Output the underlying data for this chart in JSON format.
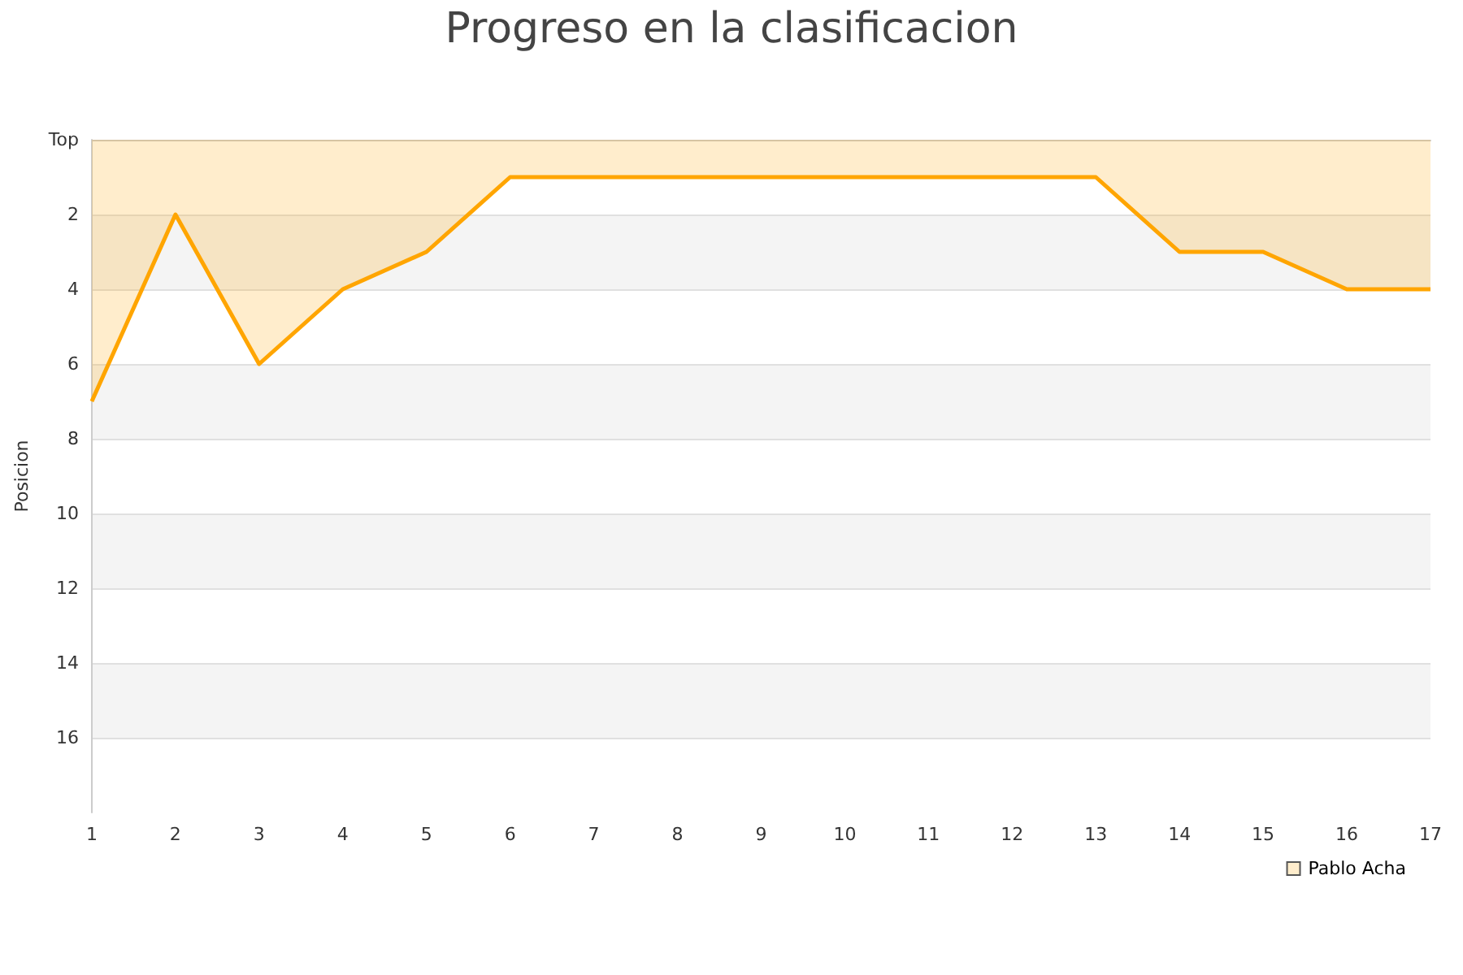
{
  "chart_data": {
    "type": "area",
    "title": "Progreso en la clasificacion",
    "ylabel": "Posicion",
    "x": [
      1,
      2,
      3,
      4,
      5,
      6,
      7,
      8,
      9,
      10,
      11,
      12,
      13,
      14,
      15,
      16,
      17
    ],
    "series": [
      {
        "name": "Pablo Acha",
        "color": "#ffa500",
        "values": [
          7,
          2,
          6,
          4,
          3,
          1,
          1,
          1,
          1,
          1,
          1,
          1,
          1,
          3,
          3,
          4,
          4
        ]
      }
    ],
    "xlim": [
      1,
      17
    ],
    "xticks": [
      1,
      2,
      3,
      4,
      5,
      6,
      7,
      8,
      9,
      10,
      11,
      12,
      13,
      14,
      15,
      16,
      17
    ],
    "ylim": [
      18,
      0
    ],
    "yticks": [
      {
        "value": 0,
        "label": "Top"
      },
      2,
      4,
      6,
      8,
      10,
      12,
      14,
      16
    ],
    "grid": "y",
    "legend": "bottom right",
    "marker": "none",
    "line_style": "solid"
  }
}
